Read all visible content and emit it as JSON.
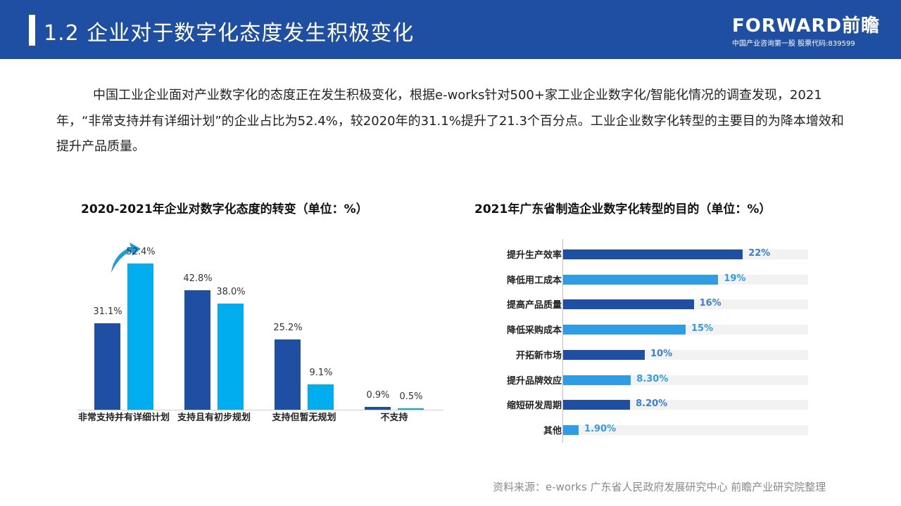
{
  "header": {
    "title": "1.2 企业对于数字化态度发生积极变化",
    "logo_brand": "FORWARD前瞻",
    "logo_sub": "中国产业咨询第一股  股票代码:839599",
    "color": "#1f4fa3"
  },
  "paragraph": "中国工业企业面对产业数字化的态度正在发生积极变化，根据e-works针对500+家工业企业数字化/智能化情况的调查发现，2021年，“非常支持并有详细计划”的企业占比为52.4%，较2020年的31.1%提升了21.3个百分点。工业企业数字化转型的主要目的为降本增效和提升产品质量。",
  "source": "资料来源：e-works 广东省人民政府发展研究中心 前瞻产业研究院整理",
  "chart_data": [
    {
      "type": "bar",
      "title": "2020-2021年企业对数字化态度的转变（单位：%）",
      "categories": [
        "非常支持并有详细计划",
        "支持且有初步规划",
        "支持但暂无规划",
        "不支持"
      ],
      "series": [
        {
          "name": "2020",
          "color": "#1f4fa3",
          "values": [
            31.1,
            42.8,
            25.2,
            0.9
          ],
          "labels": [
            "31.1%",
            "42.8%",
            "25.2%",
            "0.9%"
          ]
        },
        {
          "name": "2021",
          "color": "#00aeef",
          "values": [
            52.4,
            38.0,
            9.1,
            0.5
          ],
          "labels": [
            "52.4%",
            "38.0%",
            "9.1%",
            "0.5%"
          ]
        }
      ],
      "xlabel": "",
      "ylabel": "",
      "grid": false,
      "legend": "none"
    },
    {
      "type": "bar",
      "orientation": "horizontal",
      "title": "2021年广东省制造企业数字化转型的目的（单位：%）",
      "categories": [
        "提升生产效率",
        "降低用工成本",
        "提高产品质量",
        "降低采购成本",
        "开拓新市场",
        "提升品牌效应",
        "缩短研发周期",
        "其他"
      ],
      "values": [
        22,
        19,
        16,
        15,
        10,
        8.3,
        8.2,
        1.9
      ],
      "labels": [
        "22%",
        "19%",
        "16%",
        "15%",
        "10%",
        "8.30%",
        "8.20%",
        "1.90%"
      ],
      "colors": [
        "#1f4fa3",
        "#2f9de6",
        "#1f4fa3",
        "#2f9de6",
        "#1f4fa3",
        "#2f9de6",
        "#1f4fa3",
        "#2f9de6"
      ],
      "xlim": [
        0,
        30
      ],
      "grid": false
    }
  ]
}
